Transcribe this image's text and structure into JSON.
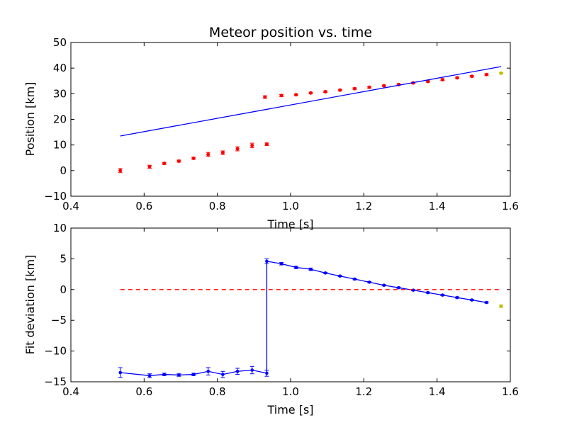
{
  "chart_data": [
    {
      "type": "scatter",
      "title": "Meteor position vs. time",
      "xlabel": "Time [s]",
      "ylabel": "Position [km]",
      "xlim": [
        0.4,
        1.6
      ],
      "ylim": [
        -10,
        50
      ],
      "xticks": [
        "0.4",
        "0.6",
        "0.8",
        "1.0",
        "1.2",
        "1.4",
        "1.6"
      ],
      "yticks": [
        "−10",
        "0",
        "10",
        "20",
        "30",
        "40",
        "50"
      ],
      "colors": {
        "points": "#ff0000",
        "last_point": "#bfbf00",
        "fit_line": "#0000ff"
      },
      "series": [
        {
          "kind": "points",
          "x": [
            0.535,
            0.615,
            0.655,
            0.695,
            0.735,
            0.775,
            0.815,
            0.855,
            0.895,
            0.935,
            0.93,
            0.975,
            1.015,
            1.055,
            1.095,
            1.135,
            1.175,
            1.215,
            1.255,
            1.295,
            1.335,
            1.375,
            1.415,
            1.455,
            1.495,
            1.535
          ],
          "y": [
            0.0,
            1.5,
            2.8,
            3.7,
            4.8,
            6.3,
            7.0,
            8.5,
            9.8,
            10.3,
            28.7,
            29.3,
            29.6,
            30.3,
            30.8,
            31.4,
            32.0,
            32.5,
            33.1,
            33.6,
            34.2,
            34.8,
            35.5,
            36.2,
            36.8,
            37.5
          ],
          "yerr": [
            0.8,
            0.6,
            0.4,
            0.4,
            0.4,
            0.8,
            0.7,
            0.8,
            0.9,
            0.5,
            0.5,
            0.4,
            0.3,
            0.3,
            0.3,
            0.3,
            0.3,
            0.3,
            0.3,
            0.3,
            0.3,
            0.3,
            0.3,
            0.3,
            0.3,
            0.3
          ]
        },
        {
          "kind": "last_point",
          "x": [
            1.575
          ],
          "y": [
            38.0
          ],
          "yerr": [
            0.3
          ]
        },
        {
          "kind": "fit_line",
          "x": [
            0.535,
            1.575
          ],
          "y": [
            13.5,
            40.6
          ]
        }
      ]
    },
    {
      "type": "line",
      "xlabel": "Time [s]",
      "ylabel": "Fit deviation [km]",
      "xlim": [
        0.4,
        1.6
      ],
      "ylim": [
        -15,
        10
      ],
      "xticks": [
        "0.4",
        "0.6",
        "0.8",
        "1.0",
        "1.2",
        "1.4",
        "1.6"
      ],
      "yticks": [
        "−15",
        "−10",
        "−5",
        "0",
        "5",
        "10"
      ],
      "colors": {
        "residuals": "#0000ff",
        "last_point": "#bfbf00",
        "zero_line": "#ff0000"
      },
      "series": [
        {
          "kind": "residuals",
          "x": [
            0.535,
            0.615,
            0.655,
            0.695,
            0.735,
            0.775,
            0.815,
            0.855,
            0.895,
            0.935,
            0.935,
            0.975,
            1.015,
            1.055,
            1.095,
            1.135,
            1.175,
            1.215,
            1.255,
            1.295,
            1.335,
            1.375,
            1.415,
            1.455,
            1.495,
            1.535
          ],
          "y": [
            -13.5,
            -14.0,
            -13.8,
            -13.9,
            -13.8,
            -13.3,
            -13.8,
            -13.3,
            -13.1,
            -13.6,
            4.6,
            4.2,
            3.6,
            3.3,
            2.7,
            2.2,
            1.7,
            1.2,
            0.7,
            0.3,
            -0.1,
            -0.5,
            -0.9,
            -1.3,
            -1.7,
            -2.1
          ],
          "yerr": [
            0.8,
            0.3,
            0.2,
            0.2,
            0.2,
            0.6,
            0.5,
            0.5,
            0.6,
            0.5,
            0.4,
            0.2,
            0.2,
            0.2,
            0.1,
            0.1,
            0.1,
            0.1,
            0.1,
            0.1,
            0.1,
            0.1,
            0.1,
            0.1,
            0.1,
            0.1
          ]
        },
        {
          "kind": "last_point",
          "x": [
            1.575
          ],
          "y": [
            -2.7
          ],
          "yerr": [
            0.2
          ]
        },
        {
          "kind": "zero_line",
          "x": [
            0.535,
            1.575
          ],
          "y": [
            0,
            0
          ]
        }
      ]
    }
  ]
}
